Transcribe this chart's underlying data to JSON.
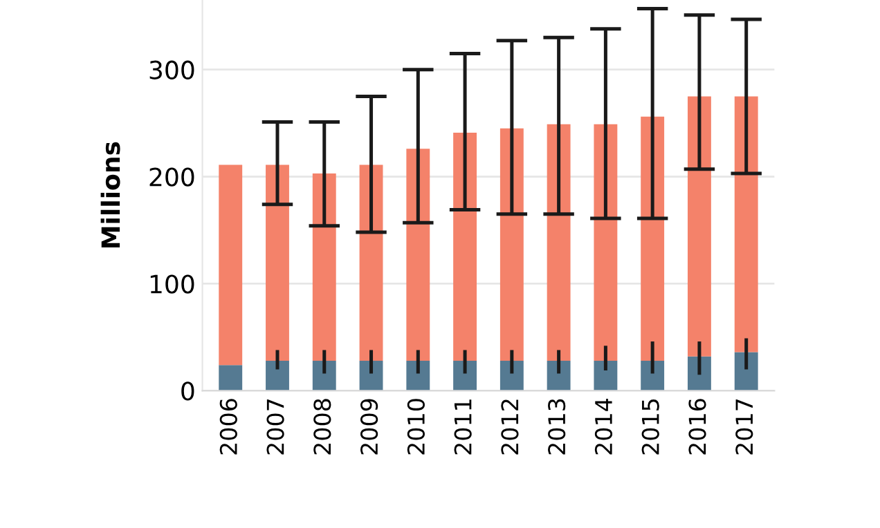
{
  "chart_data": {
    "type": "bar",
    "stacked": true,
    "ylabel": "Millions",
    "categories": [
      "2006",
      "2007",
      "2008",
      "2009",
      "2010",
      "2011",
      "2012",
      "2013",
      "2014",
      "2015",
      "2016",
      "2017"
    ],
    "series": [
      {
        "color": "#557a92",
        "values": [
          24,
          28,
          28,
          28,
          28,
          28,
          28,
          28,
          28,
          28,
          32,
          36
        ],
        "errors": [
          null,
          [
            20,
            38
          ],
          [
            16,
            38
          ],
          [
            16,
            38
          ],
          [
            16,
            38
          ],
          [
            16,
            38
          ],
          [
            16,
            38
          ],
          [
            16,
            38
          ],
          [
            19,
            42
          ],
          [
            16,
            46
          ],
          [
            15,
            46
          ],
          [
            20,
            49
          ]
        ]
      },
      {
        "color": "#f4826a",
        "values": [
          187,
          183,
          175,
          183,
          198,
          213,
          217,
          221,
          221,
          228,
          243,
          239
        ],
        "errors": [
          null,
          [
            174,
            251
          ],
          [
            154,
            251
          ],
          [
            148,
            275
          ],
          [
            157,
            300
          ],
          [
            169,
            315
          ],
          [
            165,
            327
          ],
          [
            165,
            330
          ],
          [
            161,
            338
          ],
          [
            161,
            357
          ],
          [
            207,
            351
          ],
          [
            203,
            347
          ]
        ]
      }
    ],
    "ylim": [
      0,
      365
    ],
    "yticks": [
      0,
      100,
      200,
      300
    ],
    "grid": "y",
    "legend": false
  }
}
